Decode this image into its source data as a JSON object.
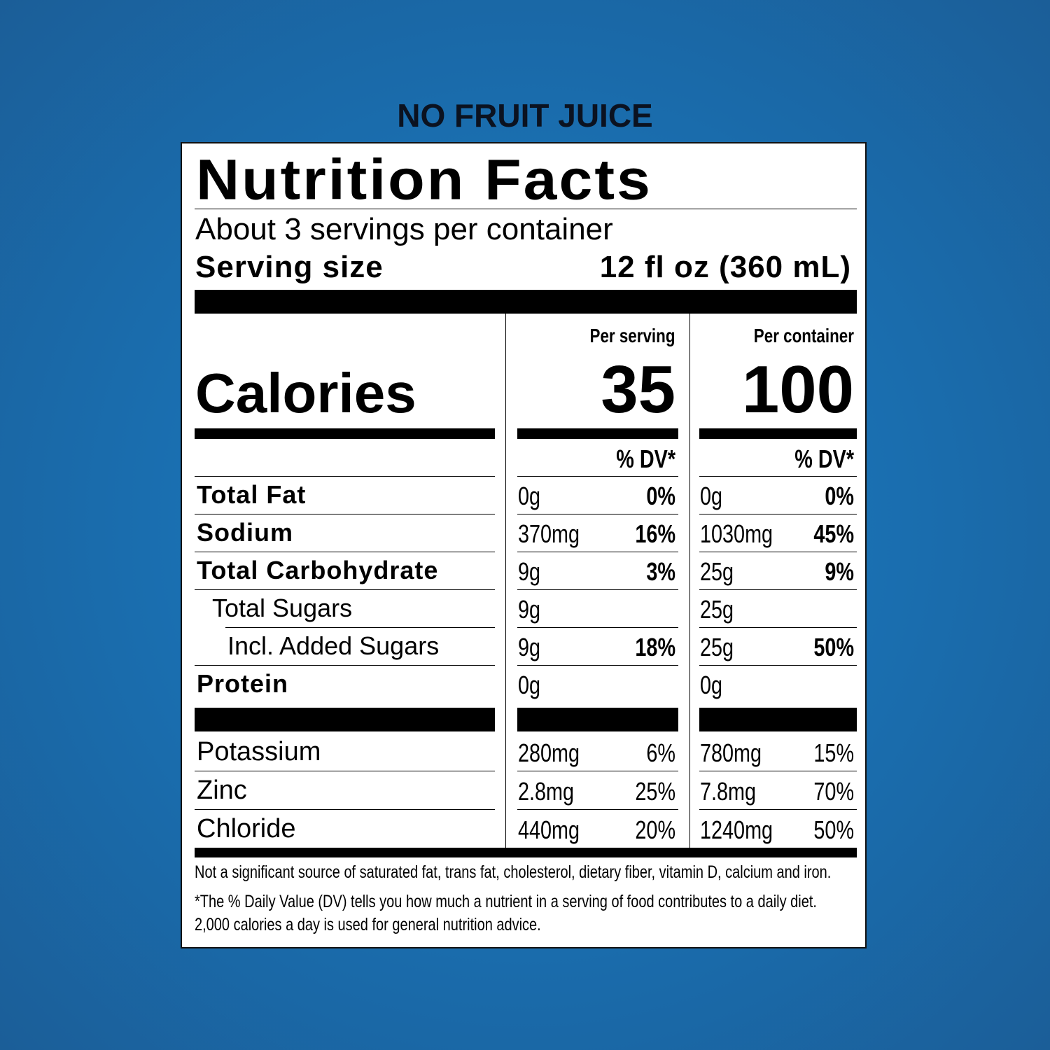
{
  "heading": "NO FRUIT JUICE",
  "label": {
    "title": "Nutrition Facts",
    "servings": "About 3 servings per container",
    "serving_size_label": "Serving size",
    "serving_size": "12 fl oz (360 mL)",
    "columns": [
      "Per serving",
      "Per container"
    ],
    "calories_label": "Calories",
    "calories": [
      35,
      100
    ],
    "dv_header": "% DV*",
    "nutrients": [
      {
        "name": "Total Fat",
        "bold": true,
        "indent": 0,
        "cells": [
          {
            "amount": "0g",
            "dv": "0%"
          },
          {
            "amount": "0g",
            "dv": "0%"
          }
        ]
      },
      {
        "name": "Sodium",
        "bold": true,
        "indent": 0,
        "cells": [
          {
            "amount": "370mg",
            "dv": "16%"
          },
          {
            "amount": "1030mg",
            "dv": "45%"
          }
        ]
      },
      {
        "name": "Total Carbohydrate",
        "bold": true,
        "indent": 0,
        "cells": [
          {
            "amount": "9g",
            "dv": "3%"
          },
          {
            "amount": "25g",
            "dv": "9%"
          }
        ]
      },
      {
        "name": "Total Sugars",
        "bold": false,
        "indent": 1,
        "cells": [
          {
            "amount": "9g"
          },
          {
            "amount": "25g"
          }
        ]
      },
      {
        "name": "Incl. Added Sugars",
        "bold": false,
        "indent": 2,
        "cells": [
          {
            "amount": "9g",
            "dv": "18%"
          },
          {
            "amount": "25g",
            "dv": "50%"
          }
        ]
      },
      {
        "name": "Protein",
        "bold": true,
        "indent": 0,
        "cells": [
          {
            "amount": "0g"
          },
          {
            "amount": "0g"
          }
        ]
      }
    ],
    "minerals": [
      {
        "name": "Potassium",
        "cells": [
          {
            "amount": "280mg",
            "dv": "6%"
          },
          {
            "amount": "780mg",
            "dv": "15%"
          }
        ]
      },
      {
        "name": "Zinc",
        "cells": [
          {
            "amount": "2.8mg",
            "dv": "25%"
          },
          {
            "amount": "7.8mg",
            "dv": "70%"
          }
        ]
      },
      {
        "name": "Chloride",
        "cells": [
          {
            "amount": "440mg",
            "dv": "20%"
          },
          {
            "amount": "1240mg",
            "dv": "50%"
          }
        ]
      }
    ],
    "footnotes": [
      "Not a significant source of saturated fat, trans fat, cholesterol, dietary fiber, vitamin D, calcium and iron.",
      "*The % Daily Value (DV) tells you how much a nutrient in a serving of food contributes to a daily diet. 2,000 calories a day is used for general nutrition advice."
    ]
  }
}
